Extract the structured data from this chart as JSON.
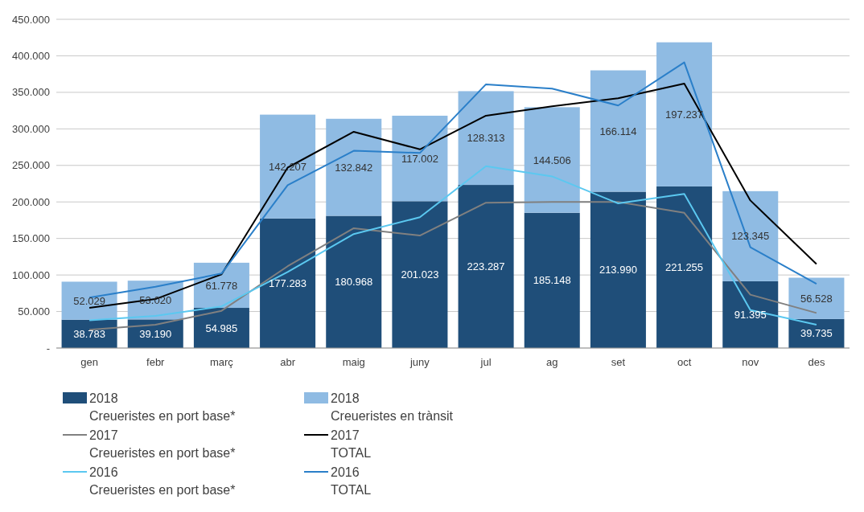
{
  "chart_data": {
    "type": "bar",
    "stacked": true,
    "categories": [
      "gen",
      "febr",
      "març",
      "abr",
      "maig",
      "juny",
      "jul",
      "ag",
      "set",
      "oct",
      "nov",
      "des"
    ],
    "ylim": [
      0,
      450000
    ],
    "yticks": [
      {
        "value": 0,
        "label": "-"
      },
      {
        "value": 50000,
        "label": "50.000"
      },
      {
        "value": 100000,
        "label": "100.000"
      },
      {
        "value": 150000,
        "label": "150.000"
      },
      {
        "value": 200000,
        "label": "200.000"
      },
      {
        "value": 250000,
        "label": "250.000"
      },
      {
        "value": 300000,
        "label": "300.000"
      },
      {
        "value": 350000,
        "label": "350.000"
      },
      {
        "value": 400000,
        "label": "400.000"
      },
      {
        "value": 450000,
        "label": "450.000"
      }
    ],
    "grid": "y",
    "legend": "bottom",
    "series": [
      {
        "name": "2018\nCreueristes en port base*",
        "color": "#1f4e79",
        "values": [
          38783,
          39190,
          54985,
          177283,
          180968,
          201023,
          223287,
          185148,
          213990,
          221255,
          91395,
          39735
        ],
        "value_labels": [
          "38.783",
          "39.190",
          "54.985",
          "177.283",
          "180.968",
          "201.023",
          "223.287",
          "185.148",
          "213.990",
          "221.255",
          "91.395",
          "39.735"
        ]
      },
      {
        "name": "2018\nCreueristes en trànsit",
        "color": "#8fbbe3",
        "values": [
          52029,
          53020,
          61778,
          142207,
          132842,
          117002,
          128313,
          144506,
          166114,
          197237,
          123345,
          56528
        ],
        "value_labels": [
          "52.029",
          "53.020",
          "61.778",
          "142.207",
          "132.842",
          "117.002",
          "128.313",
          "144.506",
          "166.114",
          "197.237",
          "123.345",
          "56.528"
        ]
      },
      {
        "name": "2017\nCreueristes en port base*",
        "type": "line",
        "color": "#808080",
        "values": [
          25000,
          32000,
          51000,
          112000,
          164000,
          154000,
          199000,
          200000,
          200000,
          185000,
          73000,
          48000
        ]
      },
      {
        "name": "2017\nTOTAL",
        "type": "line",
        "color": "#000000",
        "values": [
          55000,
          67000,
          101000,
          247000,
          296000,
          272000,
          318000,
          331000,
          342000,
          362000,
          202000,
          115000
        ]
      },
      {
        "name": "2016\nCreueristes en port base*",
        "type": "line",
        "color": "#5bc8f0",
        "values": [
          38000,
          44000,
          57000,
          104000,
          156000,
          179000,
          249000,
          235000,
          198000,
          211000,
          52000,
          32000
        ]
      },
      {
        "name": "2016\nTOTAL",
        "type": "line",
        "color": "#2a7fc9",
        "values": [
          69000,
          84000,
          102000,
          223000,
          270000,
          267000,
          361000,
          355000,
          332000,
          391000,
          138000,
          88000
        ]
      }
    ]
  }
}
